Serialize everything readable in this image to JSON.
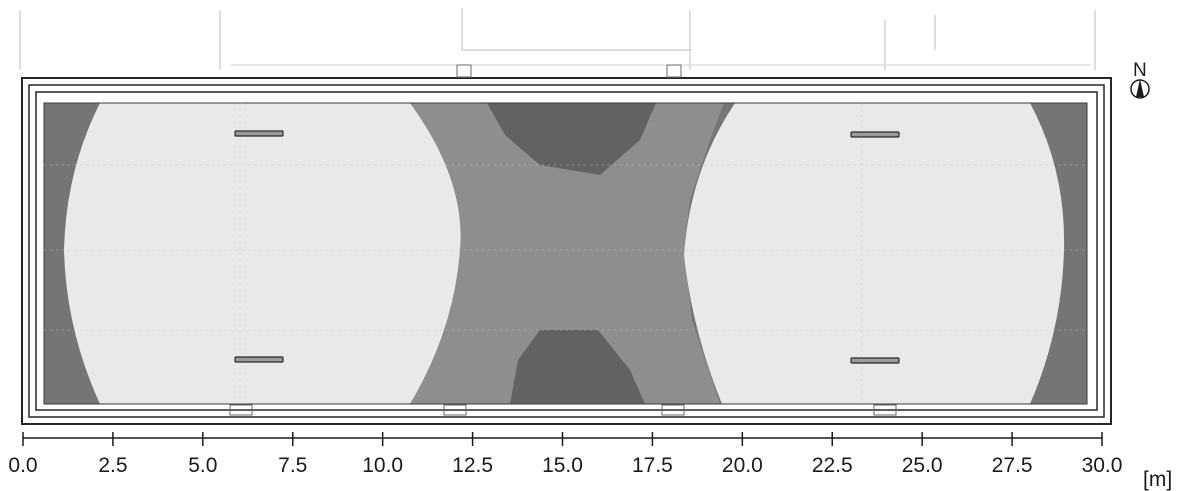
{
  "compass": {
    "label": "N",
    "icon": "north-arrow-icon"
  },
  "axis": {
    "ticks": [
      "0.0",
      "2.5",
      "5.0",
      "7.5",
      "10.0",
      "12.5",
      "15.0",
      "17.5",
      "20.0",
      "22.5",
      "25.0",
      "27.5",
      "30.0"
    ],
    "unit": "[m]"
  },
  "colors": {
    "dark": "#757575",
    "darker": "#626262",
    "mid": "#8e8e8e",
    "light": "#e9e9e9",
    "frame": "#262626",
    "paper": "#ffffff"
  }
}
